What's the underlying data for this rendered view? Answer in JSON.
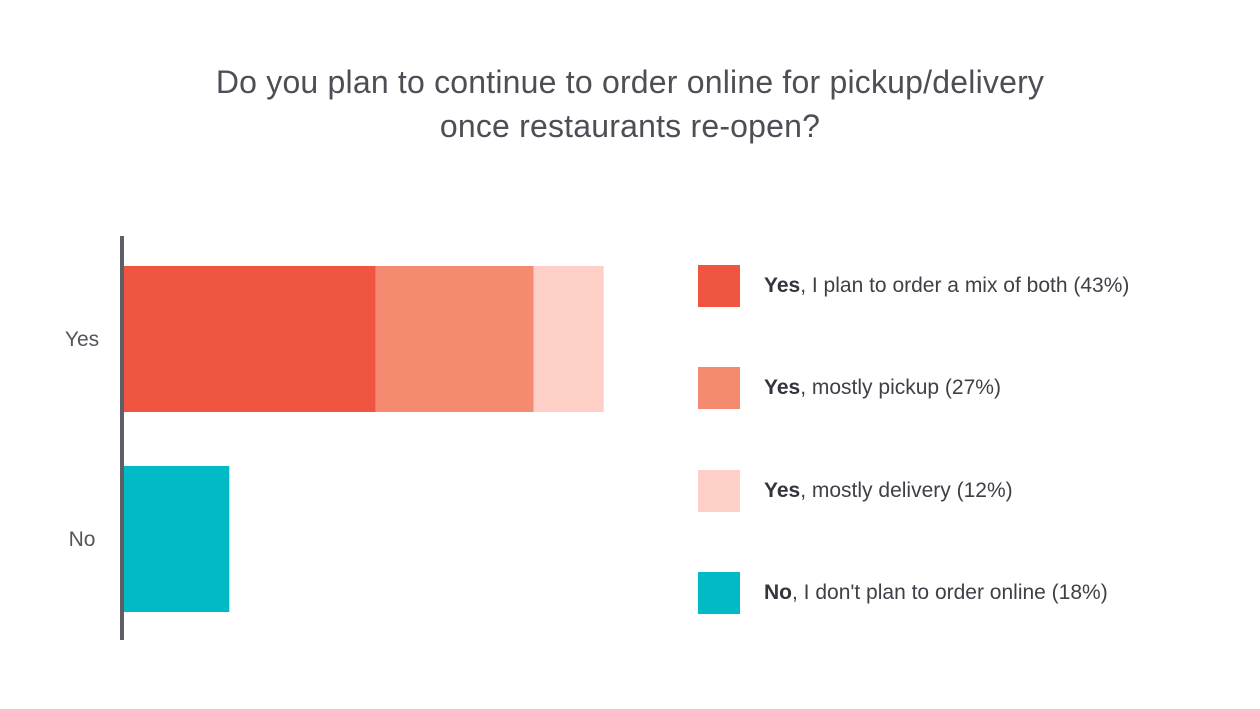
{
  "chart_data": {
    "type": "bar",
    "orientation": "horizontal",
    "stacked": true,
    "title_lines": [
      "Do you plan to continue to order online for pickup/delivery",
      "once restaurants re-open?"
    ],
    "categories": [
      "Yes",
      "No"
    ],
    "series": [
      {
        "name": "Yes, I plan to order a mix of both (43%)",
        "bold": "Yes",
        "rest": ", I plan to order a mix of both (43%)",
        "color": "#f05542",
        "values": [
          43,
          0
        ]
      },
      {
        "name": "Yes, mostly pickup (27%)",
        "bold": "Yes",
        "rest": ", mostly pickup (27%)",
        "color": "#f48b70",
        "values": [
          27,
          0
        ]
      },
      {
        "name": "Yes, mostly delivery (12%)",
        "bold": "Yes",
        "rest": ", mostly delivery (12%)",
        "color": "#fecfc6",
        "values": [
          12,
          0
        ]
      },
      {
        "name": "No, I don't plan to order online (18%)",
        "bold": "No",
        "rest": ", I don't plan to order online (18%)",
        "color": "#00bac6",
        "values": [
          0,
          18
        ]
      }
    ],
    "xlim": [
      0,
      100
    ],
    "grid": false,
    "legend_position": "right",
    "axis_color": "#5e5e66"
  }
}
